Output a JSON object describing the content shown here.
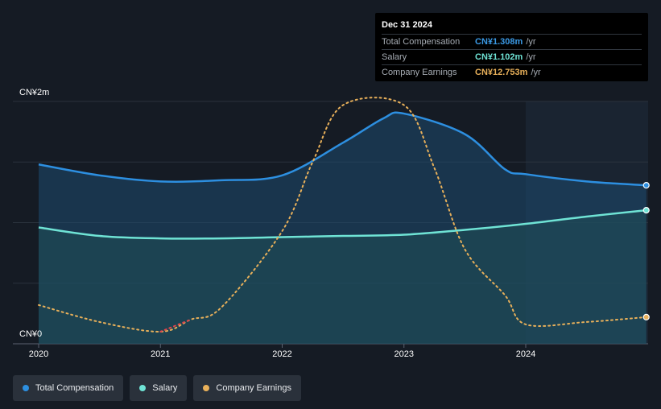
{
  "tooltip": {
    "date": "Dec 31 2024",
    "rows": [
      {
        "label": "Total Compensation",
        "value": "CN¥1.308m",
        "unit": "/yr",
        "color": "#3b9ae6"
      },
      {
        "label": "Salary",
        "value": "CN¥1.102m",
        "unit": "/yr",
        "color": "#6fe3d5"
      },
      {
        "label": "Company Earnings",
        "value": "CN¥12.753m",
        "unit": "/yr",
        "color": "#e8b05a"
      }
    ]
  },
  "legend": [
    {
      "label": "Total Compensation",
      "color": "#2d8fe0"
    },
    {
      "label": "Salary",
      "color": "#6fe3d5"
    },
    {
      "label": "Company Earnings",
      "color": "#e8b05a"
    }
  ],
  "chart_data": {
    "type": "line",
    "y_labels": {
      "top": "CN¥2m",
      "bottom": "CN¥0"
    },
    "ylim": [
      0,
      2
    ],
    "xlim": [
      2020,
      2025
    ],
    "x_ticks": [
      "2020",
      "2021",
      "2022",
      "2023",
      "2024"
    ],
    "grid": true,
    "series": [
      {
        "name": "Total Compensation",
        "color": "#2d8fe0",
        "points": [
          [
            2020.0,
            1.48
          ],
          [
            2020.5,
            1.39
          ],
          [
            2021.0,
            1.34
          ],
          [
            2021.5,
            1.35
          ],
          [
            2022.0,
            1.39
          ],
          [
            2022.5,
            1.66
          ],
          [
            2022.83,
            1.86
          ],
          [
            2023.0,
            1.9
          ],
          [
            2023.5,
            1.73
          ],
          [
            2023.83,
            1.44
          ],
          [
            2024.0,
            1.4
          ],
          [
            2024.5,
            1.34
          ],
          [
            2024.99,
            1.308
          ]
        ]
      },
      {
        "name": "Salary",
        "color": "#6fe3d5",
        "points": [
          [
            2020.0,
            0.96
          ],
          [
            2020.5,
            0.89
          ],
          [
            2021.0,
            0.87
          ],
          [
            2021.5,
            0.87
          ],
          [
            2022.0,
            0.88
          ],
          [
            2022.5,
            0.89
          ],
          [
            2023.0,
            0.9
          ],
          [
            2023.5,
            0.94
          ],
          [
            2024.0,
            0.99
          ],
          [
            2024.5,
            1.05
          ],
          [
            2024.99,
            1.102
          ]
        ]
      },
      {
        "name": "Company Earnings",
        "color": "#e8b05a",
        "unit_note": "",
        "points": [
          [
            2020.0,
            0.32
          ],
          [
            2020.5,
            0.18
          ],
          [
            2021.0,
            0.1
          ],
          [
            2021.25,
            0.2
          ],
          [
            2021.5,
            0.3
          ],
          [
            2022.0,
            0.93
          ],
          [
            2022.25,
            1.5
          ],
          [
            2022.5,
            1.97
          ],
          [
            2023.0,
            1.97
          ],
          [
            2023.25,
            1.45
          ],
          [
            2023.5,
            0.78
          ],
          [
            2023.83,
            0.4
          ],
          [
            2024.0,
            0.16
          ],
          [
            2024.5,
            0.18
          ],
          [
            2024.99,
            0.22
          ]
        ]
      }
    ]
  }
}
